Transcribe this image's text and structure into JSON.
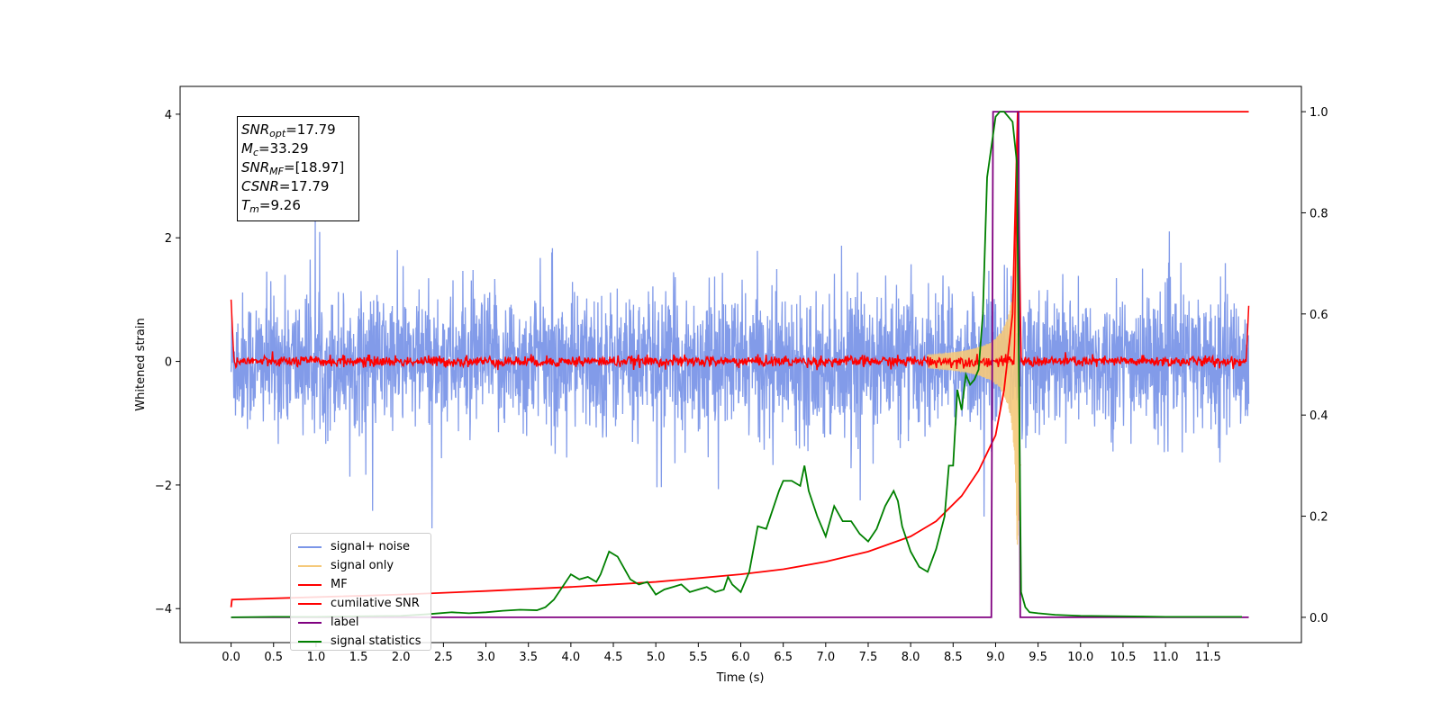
{
  "chart_data": {
    "type": "line",
    "title": "",
    "xlabel": "Time (s)",
    "ylabel": "Whitened strain",
    "y2label": "",
    "xlim": [
      -0.6,
      12.6
    ],
    "ylim": [
      -4.55,
      4.45
    ],
    "y2lim": [
      -0.05,
      1.05
    ],
    "x_ticks": [
      0.0,
      0.5,
      1.0,
      1.5,
      2.0,
      2.5,
      3.0,
      3.5,
      4.0,
      4.5,
      5.0,
      5.5,
      6.0,
      6.5,
      7.0,
      7.5,
      8.0,
      8.5,
      9.0,
      9.5,
      10.0,
      10.5,
      11.0,
      11.5
    ],
    "x_tick_labels": [
      "0.0",
      "0.5",
      "1.0",
      "1.5",
      "2.0",
      "2.5",
      "3.0",
      "3.5",
      "4.0",
      "4.5",
      "5.0",
      "5.5",
      "6.0",
      "6.5",
      "7.0",
      "7.5",
      "8.0",
      "8.5",
      "9.0",
      "9.5",
      "10.0",
      "10.5",
      "11.0",
      "11.5"
    ],
    "y_ticks": [
      4,
      2,
      0,
      -2,
      -4
    ],
    "y_tick_labels": [
      "4",
      "2",
      "0",
      "−2",
      "−4"
    ],
    "y2_ticks": [
      1.0,
      0.8,
      0.6,
      0.4,
      0.2,
      0.0
    ],
    "y2_tick_labels": [
      "1.0",
      "0.8",
      "0.6",
      "0.4",
      "0.2",
      "0.0"
    ],
    "grid": false,
    "legend_position": "lower-left",
    "annotation": {
      "lines": [
        {
          "sym": "SNR",
          "sub": "opt",
          "value": "=17.79"
        },
        {
          "sym": "M",
          "sub": "c",
          "value": "=33.29"
        },
        {
          "sym": "SNR",
          "sub": "MF",
          "value": "=[18.97]"
        },
        {
          "sym": "CSNR",
          "sub": "",
          "value": "=17.79"
        },
        {
          "sym": "T",
          "sub": "m",
          "value": "=9.26"
        }
      ]
    },
    "series": [
      {
        "name": "signal+ noise",
        "color": "#7b96e8",
        "axis": "left",
        "description_values": {
          "x_range": [
            0,
            11.98
          ],
          "amplitude_envelope": [
            -1.5,
            1.5
          ],
          "spikes_max": 3.1,
          "spikes_min": -2.7
        }
      },
      {
        "name": "signal only",
        "color": "#f5c97a",
        "axis": "left",
        "description_values": {
          "chirp_start": 8.2,
          "chirp_end": 9.3,
          "peak_amplitude": 3.0
        }
      },
      {
        "name": "MF",
        "color": "#ff0000",
        "axis": "left",
        "description_values": {
          "baseline": 0.0,
          "noise_amp": 0.12,
          "edge_value": 1.0,
          "peak_time": 9.26,
          "peak_value": 4.0
        }
      },
      {
        "name": "cumilative SNR",
        "color": "#ff0000",
        "axis": "right",
        "x": [
          0.0,
          0.01,
          1.0,
          2.0,
          3.0,
          4.0,
          5.0,
          6.0,
          6.5,
          7.0,
          7.5,
          8.0,
          8.3,
          8.6,
          8.8,
          9.0,
          9.1,
          9.2,
          9.26,
          9.3,
          11.98
        ],
        "y": [
          0.02,
          0.035,
          0.04,
          0.045,
          0.052,
          0.06,
          0.07,
          0.085,
          0.095,
          0.11,
          0.13,
          0.16,
          0.19,
          0.24,
          0.29,
          0.36,
          0.45,
          0.6,
          1.0,
          1.0,
          1.0
        ]
      },
      {
        "name": "label",
        "color": "#800080",
        "axis": "right",
        "x": [
          0.0,
          8.95,
          8.97,
          9.27,
          9.29,
          11.98
        ],
        "y": [
          0.0,
          0.0,
          1.0,
          1.0,
          0.0,
          0.0
        ]
      },
      {
        "name": "signal statistics",
        "color": "#008000",
        "axis": "right",
        "x": [
          0.0,
          0.5,
          1.0,
          1.5,
          2.0,
          2.3,
          2.6,
          2.8,
          3.0,
          3.2,
          3.4,
          3.6,
          3.7,
          3.8,
          3.9,
          4.0,
          4.1,
          4.2,
          4.3,
          4.35,
          4.45,
          4.55,
          4.7,
          4.8,
          4.9,
          5.0,
          5.1,
          5.2,
          5.3,
          5.4,
          5.5,
          5.6,
          5.7,
          5.8,
          5.85,
          5.9,
          6.0,
          6.1,
          6.2,
          6.3,
          6.45,
          6.5,
          6.6,
          6.7,
          6.75,
          6.8,
          6.9,
          7.0,
          7.1,
          7.2,
          7.3,
          7.4,
          7.5,
          7.6,
          7.7,
          7.8,
          7.85,
          7.9,
          8.0,
          8.1,
          8.2,
          8.3,
          8.4,
          8.45,
          8.5,
          8.55,
          8.6,
          8.65,
          8.7,
          8.75,
          8.8,
          8.85,
          8.9,
          8.95,
          9.0,
          9.05,
          9.1,
          9.15,
          9.2,
          9.25,
          9.3,
          9.35,
          9.4,
          9.5,
          9.7,
          10.0,
          11.0,
          11.9
        ],
        "y": [
          0.0,
          0.001,
          0.001,
          0.002,
          0.003,
          0.006,
          0.01,
          0.008,
          0.01,
          0.013,
          0.015,
          0.014,
          0.02,
          0.035,
          0.06,
          0.085,
          0.075,
          0.08,
          0.07,
          0.085,
          0.13,
          0.12,
          0.075,
          0.065,
          0.07,
          0.045,
          0.055,
          0.06,
          0.065,
          0.05,
          0.055,
          0.06,
          0.05,
          0.055,
          0.08,
          0.065,
          0.05,
          0.09,
          0.18,
          0.175,
          0.25,
          0.27,
          0.27,
          0.26,
          0.3,
          0.25,
          0.2,
          0.16,
          0.22,
          0.19,
          0.19,
          0.165,
          0.15,
          0.175,
          0.22,
          0.25,
          0.23,
          0.18,
          0.13,
          0.1,
          0.09,
          0.135,
          0.2,
          0.3,
          0.3,
          0.45,
          0.41,
          0.48,
          0.46,
          0.47,
          0.49,
          0.6,
          0.87,
          0.93,
          0.99,
          1.0,
          1.0,
          0.99,
          0.98,
          0.9,
          0.05,
          0.02,
          0.01,
          0.008,
          0.005,
          0.003,
          0.001,
          0.001
        ]
      }
    ]
  }
}
